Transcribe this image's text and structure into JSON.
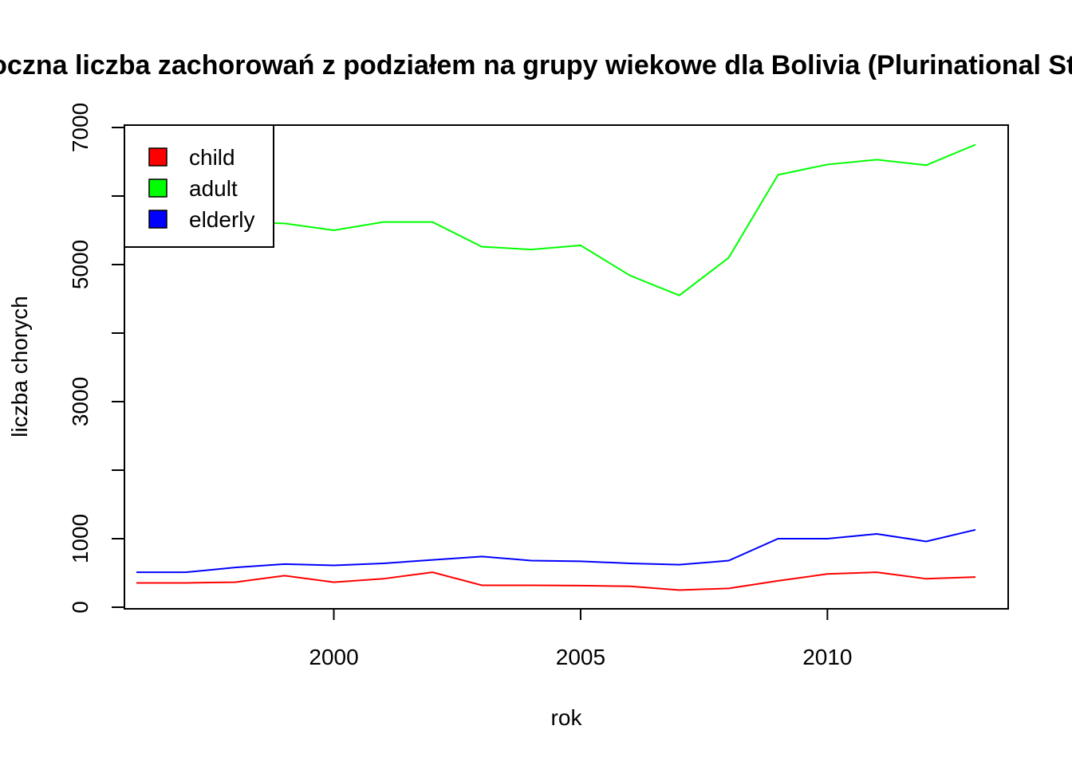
{
  "chart_data": {
    "type": "line",
    "title": "Roczna liczba zachorowań z podziałem na grupy wiekowe dla Bolivia (Plurinational State of)",
    "xlabel": "rok",
    "ylabel": "liczba chorych",
    "xlim": [
      1995.5,
      2013.7
    ],
    "ylim": [
      0,
      7000
    ],
    "x_ticks": [
      2000,
      2005,
      2010
    ],
    "x_tick_labels": [
      "2000",
      "2005",
      "2010"
    ],
    "y_ticks": [
      0,
      1000,
      2000,
      3000,
      4000,
      5000,
      6000,
      7000
    ],
    "y_tick_labels": [
      "0",
      "1000",
      "3000",
      "5000",
      "7000"
    ],
    "y_labeled_ticks": [
      0,
      1000,
      3000,
      5000,
      7000
    ],
    "grid": false,
    "legend_position": "top-left",
    "x": [
      1996,
      1997,
      1998,
      1999,
      2000,
      2001,
      2002,
      2003,
      2004,
      2005,
      2006,
      2007,
      2008,
      2009,
      2010,
      2011,
      2012,
      2013
    ],
    "series": [
      {
        "name": "child",
        "color": "#ff0000",
        "values": [
          355,
          355,
          365,
          460,
          365,
          415,
          510,
          320,
          320,
          315,
          305,
          250,
          275,
          385,
          485,
          510,
          415,
          440
        ]
      },
      {
        "name": "adult",
        "color": "#00ff00",
        "values": [
          5600,
          5600,
          5620,
          5600,
          5500,
          5620,
          5620,
          5260,
          5220,
          5280,
          4840,
          4550,
          5100,
          6310,
          6460,
          6530,
          6450,
          6750
        ]
      },
      {
        "name": "elderly",
        "color": "#0000ff",
        "values": [
          510,
          510,
          580,
          630,
          610,
          640,
          690,
          740,
          680,
          670,
          640,
          620,
          680,
          1000,
          1000,
          1070,
          960,
          1130
        ]
      }
    ]
  }
}
